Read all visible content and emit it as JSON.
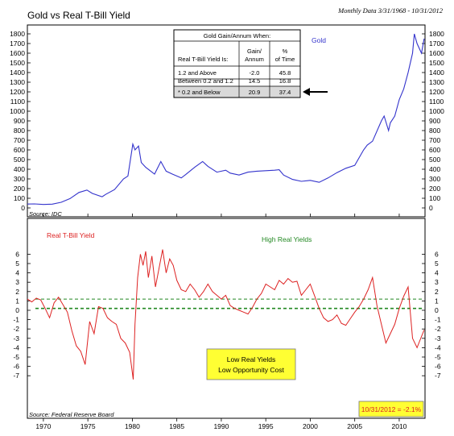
{
  "header": {
    "title": "Gold vs Real T-Bill Yield",
    "note": "Monthly Data 3/31/1968 - 10/31/2012"
  },
  "chart_data": [
    {
      "type": "line",
      "name": "gold-panel",
      "series": [
        {
          "name": "Gold",
          "color": "#3333cc",
          "x": [
            1968.2,
            1969,
            1970,
            1971,
            1972,
            1973,
            1974,
            1974.9,
            1975.5,
            1976.6,
            1977,
            1978,
            1979,
            1979.5,
            1980.05,
            1980.3,
            1980.7,
            1981,
            1981.5,
            1982.5,
            1983.2,
            1983.8,
            1984.5,
            1985.5,
            1986,
            1987,
            1987.9,
            1988.5,
            1989.5,
            1990.5,
            1991,
            1992,
            1993,
            1994,
            1995,
            1996,
            1996.5,
            1997,
            1998,
            1999,
            2000,
            2001,
            2002,
            2003,
            2004,
            2005,
            2006,
            2006.4,
            2007,
            2008,
            2008.3,
            2008.8,
            2009,
            2009.5,
            2010,
            2010.5,
            2011,
            2011.5,
            2011.7,
            2012,
            2012.5,
            2012.8
          ],
          "values": [
            40,
            42,
            36,
            39,
            58,
            97,
            160,
            185,
            150,
            115,
            140,
            190,
            300,
            330,
            660,
            600,
            640,
            470,
            420,
            350,
            480,
            380,
            350,
            310,
            345,
            420,
            480,
            430,
            370,
            390,
            360,
            340,
            370,
            380,
            385,
            390,
            395,
            340,
            295,
            275,
            285,
            265,
            310,
            365,
            410,
            440,
            600,
            650,
            690,
            900,
            950,
            800,
            880,
            950,
            1120,
            1230,
            1400,
            1600,
            1800,
            1700,
            1600,
            1750
          ]
        }
      ],
      "xlim": [
        1968.2,
        2012.9
      ],
      "ylim": [
        0,
        1850
      ],
      "yticks": [
        0,
        100,
        200,
        300,
        400,
        500,
        600,
        700,
        800,
        900,
        1000,
        1100,
        1200,
        1300,
        1400,
        1500,
        1600,
        1700,
        1800
      ],
      "annotations": [
        {
          "text": "Gold",
          "color": "#3333cc"
        },
        {
          "text": "Source: IDC"
        }
      ],
      "table": {
        "title": "Gold Gain/Annum When:",
        "headers": [
          "Real T-Bill Yield Is:",
          "Gain/ Annum",
          "% of Time"
        ],
        "rows": [
          [
            "1.2 and Above",
            "-2.0",
            "45.8"
          ],
          [
            "Between 0.2 and 1.2",
            "14.5",
            "16.8"
          ],
          [
            "* 0.2 and Below",
            "20.9",
            "37.4"
          ]
        ]
      }
    },
    {
      "type": "line",
      "name": "yield-panel",
      "series": [
        {
          "name": "Real T-Bill Yield",
          "color": "#dd2222",
          "x": [
            1968.2,
            1968.7,
            1969.2,
            1969.7,
            1970.2,
            1970.7,
            1971.2,
            1971.7,
            1972.2,
            1972.7,
            1973.2,
            1973.7,
            1974.2,
            1974.7,
            1975.2,
            1975.7,
            1976.2,
            1976.7,
            1977.2,
            1977.7,
            1978.2,
            1978.7,
            1979.2,
            1979.7,
            1980.1,
            1980.3,
            1980.6,
            1980.9,
            1981.2,
            1981.5,
            1981.8,
            1982.2,
            1982.6,
            1983,
            1983.4,
            1983.8,
            1984.2,
            1984.6,
            1985,
            1985.5,
            1986,
            1986.5,
            1987,
            1987.5,
            1988,
            1988.5,
            1989,
            1989.5,
            1990,
            1990.5,
            1991,
            1991.5,
            1992,
            1992.5,
            1993,
            1993.5,
            1994,
            1994.5,
            1995,
            1995.5,
            1996,
            1996.5,
            1997,
            1997.5,
            1998,
            1998.5,
            1999,
            1999.5,
            2000,
            2000.5,
            2001,
            2001.5,
            2002,
            2002.5,
            2003,
            2003.5,
            2004,
            2004.5,
            2005,
            2005.5,
            2006,
            2006.5,
            2007,
            2007.5,
            2008,
            2008.5,
            2009,
            2009.5,
            2010,
            2010.5,
            2011,
            2011.5,
            2012,
            2012.5,
            2012.8
          ],
          "values": [
            1.2,
            0.9,
            1.3,
            1.1,
            0.2,
            -0.8,
            0.8,
            1.4,
            0.6,
            -0.2,
            -2.2,
            -3.8,
            -4.4,
            -5.8,
            -1.2,
            -2.5,
            0.4,
            0.2,
            -0.8,
            -1.2,
            -1.5,
            -3.0,
            -3.5,
            -4.5,
            -7.4,
            -1.5,
            3.5,
            6.0,
            4.8,
            6.3,
            3.5,
            5.8,
            2.5,
            4.5,
            6.5,
            4.0,
            5.5,
            4.8,
            3.2,
            2.2,
            2.0,
            2.8,
            2.2,
            1.4,
            2.0,
            2.8,
            2.0,
            1.6,
            1.2,
            1.6,
            0.5,
            0.2,
            0.0,
            -0.2,
            -0.4,
            0.3,
            1.2,
            1.8,
            2.8,
            2.5,
            2.2,
            3.2,
            2.8,
            3.4,
            3.0,
            3.1,
            1.6,
            2.2,
            2.8,
            1.5,
            0.2,
            -0.8,
            -1.2,
            -1.0,
            -0.5,
            -1.4,
            -1.6,
            -0.9,
            -0.2,
            0.4,
            1.2,
            2.2,
            3.5,
            0.5,
            -1.5,
            -3.5,
            -2.5,
            -1.5,
            0.2,
            1.5,
            2.5,
            -3.0,
            -4.0,
            -2.8,
            -2.1
          ]
        }
      ],
      "xlim": [
        1968.2,
        2012.9
      ],
      "ylim": [
        -7.6,
        6.7
      ],
      "yticks": [
        -7,
        -6,
        -5,
        -4,
        -3,
        -2,
        -1,
        0,
        1,
        2,
        3,
        4,
        5,
        6
      ],
      "reference_lines": [
        {
          "value": 1.2,
          "color": "#228822"
        },
        {
          "value": 0.2,
          "color": "#228822"
        }
      ],
      "annotations": [
        {
          "text": "Real T-Bill Yield",
          "color": "#dd2222"
        },
        {
          "text": "High Real Yields",
          "color": "#228822"
        },
        {
          "text": "Low Real Yields",
          "color": "#000000"
        },
        {
          "text": "Low Opportunity Cost",
          "color": "#000000"
        },
        {
          "text": "10/31/2012 = -2.1%",
          "color": "#dd2222"
        },
        {
          "text": "Source: Federal Reserve Board"
        }
      ],
      "xticks": [
        1970,
        1975,
        1980,
        1985,
        1990,
        1995,
        2000,
        2005,
        2010
      ]
    }
  ]
}
